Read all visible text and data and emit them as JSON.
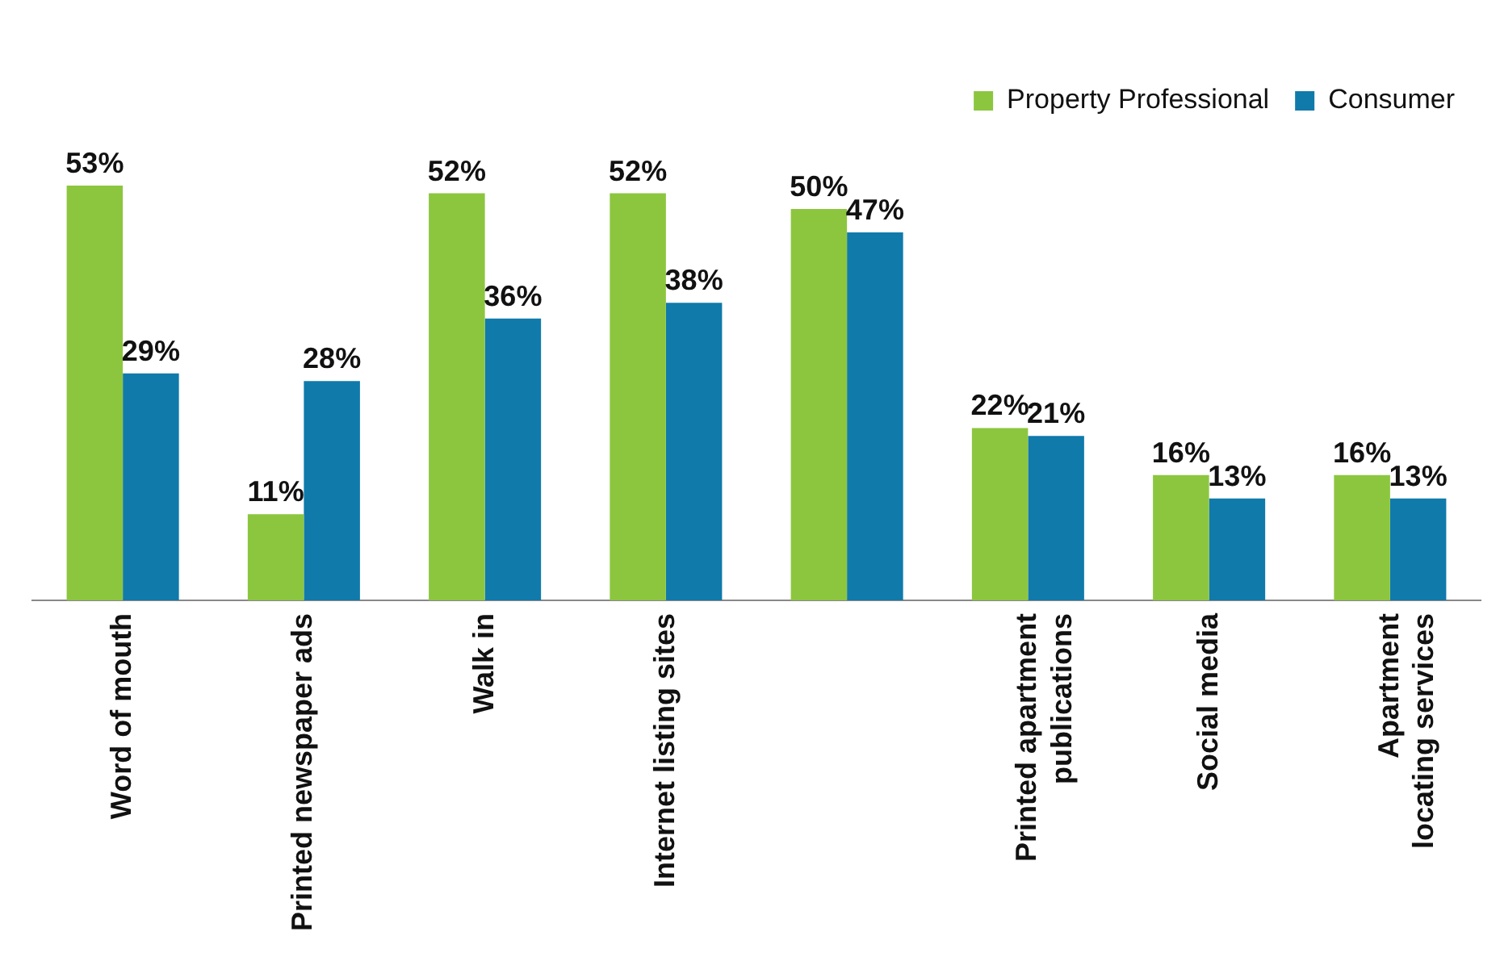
{
  "chart_data": {
    "type": "bar",
    "categories": [
      "Word of mouth",
      "Printed newspaper ads",
      "Walk in",
      "Internet listing sites",
      null,
      "Printed apartment publications",
      "Social media",
      "Apartment locating services"
    ],
    "series": [
      {
        "name": "Property Professional",
        "color": "#8cc63f",
        "values": [
          53,
          11,
          52,
          52,
          50,
          22,
          16,
          16
        ],
        "value_labels": [
          "53%",
          "11%",
          "52%",
          "52%",
          "50%",
          "22%",
          "16%",
          "16%"
        ]
      },
      {
        "name": "Consumer",
        "color": "#107aab",
        "values": [
          29,
          28,
          36,
          38,
          47,
          21,
          13,
          13
        ],
        "value_labels": [
          "29%",
          "28%",
          "36%",
          "38%",
          "47%",
          "21%",
          "13%",
          "13%"
        ]
      }
    ],
    "relative": false,
    "legend": "top right",
    "grid": false
  }
}
